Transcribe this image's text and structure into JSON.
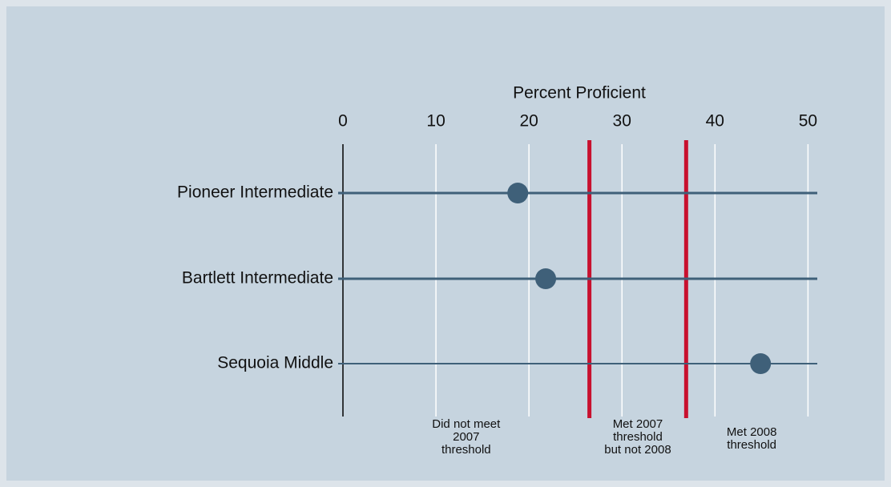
{
  "chart_data": {
    "type": "dot",
    "x_label": "Percent Proficient",
    "categories": [
      "Pioneer Intermediate",
      "Bartlett Intermediate",
      "Sequoia Middle"
    ],
    "values": [
      18.8,
      21.8,
      44.9
    ],
    "color": "#3f6079",
    "xlim": [
      0,
      51
    ],
    "xticks": [
      0,
      10,
      20,
      30,
      40,
      50
    ],
    "grid": true,
    "reference_lines": {
      "values": [
        26.5,
        36.9
      ],
      "color": "#c8102e"
    },
    "annotations": [
      [
        "Did not meet",
        "2007",
        "threshold"
      ],
      [
        "Met 2007",
        "threshold",
        "but not 2008"
      ],
      [
        "Met 2008",
        "threshold"
      ]
    ]
  }
}
